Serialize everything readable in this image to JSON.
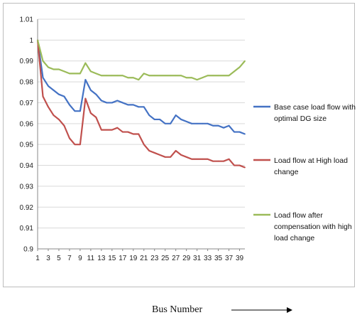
{
  "chart_data": {
    "type": "line",
    "xlabel": "Bus Number",
    "ylabel": "",
    "ylim": [
      0.9,
      1.01
    ],
    "yticks": [
      "0.9",
      "0.91",
      "0.92",
      "0.93",
      "0.94",
      "0.95",
      "0.96",
      "0.97",
      "0.98",
      "0.99",
      "1",
      "1.01"
    ],
    "xticks": [
      "1",
      "3",
      "5",
      "7",
      "9",
      "11",
      "13",
      "15",
      "17",
      "19",
      "21",
      "23",
      "25",
      "27",
      "29",
      "31",
      "33",
      "35",
      "37",
      "39"
    ],
    "grid": "horizontal",
    "legend_position": "right",
    "x": [
      1,
      2,
      3,
      4,
      5,
      6,
      7,
      8,
      9,
      10,
      11,
      12,
      13,
      14,
      15,
      16,
      17,
      18,
      19,
      20,
      21,
      22,
      23,
      24,
      25,
      26,
      27,
      28,
      29,
      30,
      31,
      32,
      33,
      34,
      35,
      36,
      37,
      38,
      39,
      40
    ],
    "series": [
      {
        "name": "Base case load flow with optimal DG size",
        "color": "#4472c4",
        "values": [
          1.0,
          0.982,
          0.978,
          0.976,
          0.974,
          0.973,
          0.969,
          0.966,
          0.966,
          0.981,
          0.976,
          0.974,
          0.971,
          0.97,
          0.97,
          0.971,
          0.97,
          0.969,
          0.969,
          0.968,
          0.968,
          0.964,
          0.962,
          0.962,
          0.96,
          0.96,
          0.964,
          0.962,
          0.961,
          0.96,
          0.96,
          0.96,
          0.96,
          0.959,
          0.959,
          0.958,
          0.959,
          0.956,
          0.956,
          0.955
        ]
      },
      {
        "name": "Load flow  at  High load change",
        "color": "#c0504d",
        "values": [
          1.0,
          0.973,
          0.968,
          0.964,
          0.962,
          0.959,
          0.953,
          0.95,
          0.95,
          0.972,
          0.965,
          0.963,
          0.957,
          0.957,
          0.957,
          0.958,
          0.956,
          0.956,
          0.955,
          0.955,
          0.95,
          0.947,
          0.946,
          0.945,
          0.944,
          0.944,
          0.947,
          0.945,
          0.944,
          0.943,
          0.943,
          0.943,
          0.943,
          0.942,
          0.942,
          0.942,
          0.943,
          0.94,
          0.94,
          0.939
        ]
      },
      {
        "name": "Load flow  after compensation with high load change",
        "color": "#9bbb59",
        "values": [
          1.0,
          0.99,
          0.987,
          0.986,
          0.986,
          0.985,
          0.984,
          0.984,
          0.984,
          0.989,
          0.985,
          0.984,
          0.983,
          0.983,
          0.983,
          0.983,
          0.983,
          0.982,
          0.982,
          0.981,
          0.984,
          0.983,
          0.983,
          0.983,
          0.983,
          0.983,
          0.983,
          0.983,
          0.982,
          0.982,
          0.981,
          0.982,
          0.983,
          0.983,
          0.983,
          0.983,
          0.983,
          0.985,
          0.987,
          0.99
        ]
      }
    ],
    "legend_lines": [
      [
        "Base case load flow with",
        "optimal DG size"
      ],
      [
        "Load flow  at  High load",
        "change"
      ],
      [
        "Load flow  after",
        "compensation with high",
        "load change"
      ]
    ]
  }
}
